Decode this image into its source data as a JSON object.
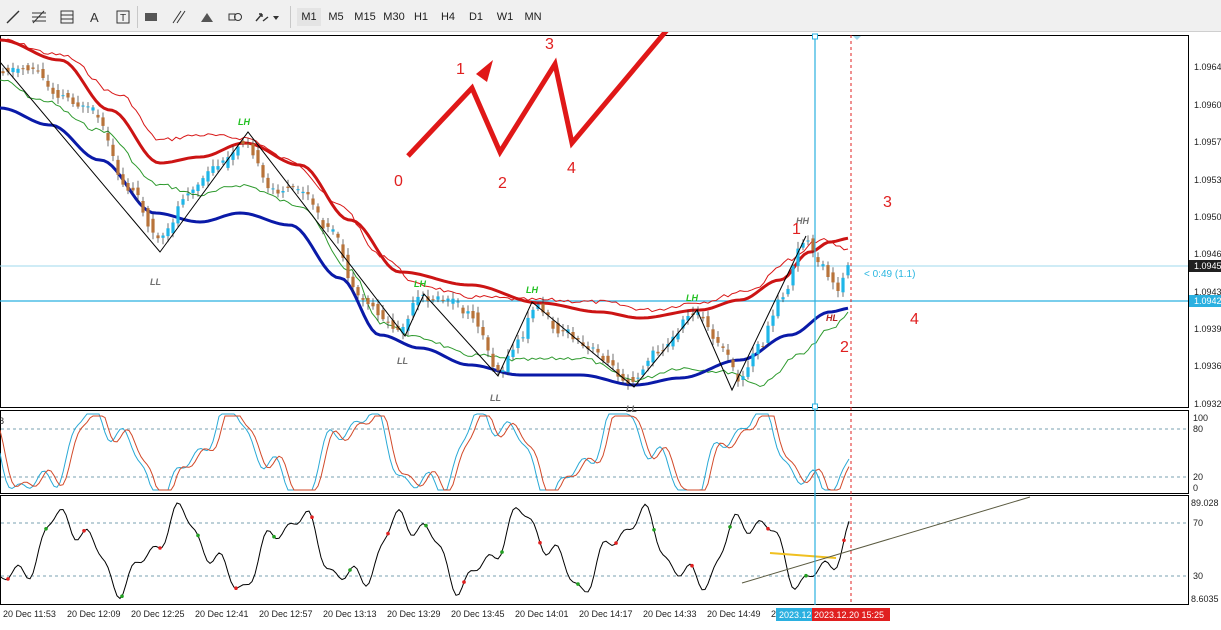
{
  "toolbar": {
    "tool_icons": [
      "line-tool-icon",
      "fibonacci-tool-icon",
      "channel-tool-icon",
      "text-tool-icon",
      "text-label-tool-icon",
      "rectangle-tool-icon",
      "hatch-tool-icon",
      "triangle-tool-icon",
      "shapes-tool-icon",
      "arrow-tool-icon"
    ],
    "timeframes": [
      "M1",
      "M5",
      "M15",
      "M30",
      "H1",
      "H4",
      "D1",
      "W1",
      "MN"
    ],
    "active_timeframe": "M1"
  },
  "price_axis": {
    "labels": [
      "1.0964",
      "1.0960",
      "1.0957",
      "1.0953",
      "1.0950",
      "1.0946",
      "1.0943",
      "1.0939",
      "1.0936",
      "1.0932"
    ],
    "current_price_tag": "1.0945",
    "hline_price_tag": "1.0942",
    "countdown": "< 0:49 (1.1)"
  },
  "osc1_axis": {
    "labels": [
      "100",
      "80",
      "20",
      "0"
    ],
    "left_clip": "8"
  },
  "osc2_axis": {
    "labels": [
      "89.028",
      "70",
      "30",
      "8.6035"
    ]
  },
  "time_axis": {
    "labels": [
      "20 Dec 11:53",
      "20 Dec 12:09",
      "20 Dec 12:25",
      "20 Dec 12:41",
      "20 Dec 12:57",
      "20 Dec 13:13",
      "20 Dec 13:29",
      "20 Dec 13:45",
      "20 Dec 14:01",
      "20 Dec 14:17",
      "20 Dec 14:33",
      "20 Dec 14:49",
      "2"
    ],
    "crosshair_tag": "2023.12",
    "current_tag": "2023.12.20 15:25"
  },
  "wave_labels": {
    "left": [
      "0",
      "1",
      "2",
      "3",
      "4"
    ],
    "right": [
      "1",
      "2",
      "3",
      "4"
    ]
  },
  "swing_labels": [
    "LH",
    "LL",
    "LH",
    "LL",
    "LH",
    "LL",
    "LH",
    "LL",
    "HH",
    "HL"
  ],
  "colors": {
    "bull": "#1fb6e8",
    "bear": "#b8733a",
    "red_band": "#cc1414",
    "blue_band": "#0a1aa8",
    "green_band": "#2e9a2e",
    "thin_red": "#d81818",
    "wave_red": "#e01818",
    "annot_red": "#e02020",
    "crosshair": "#2bb0e0",
    "stoch_main": "#29a9d6",
    "stoch_signal": "#d24a2a",
    "swing_green": "#22c022",
    "swing_grey": "#707070"
  }
}
